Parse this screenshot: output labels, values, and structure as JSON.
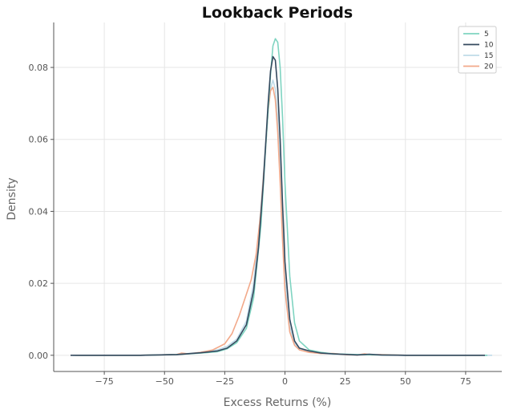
{
  "chart_data": {
    "type": "line",
    "title": "Lookback Periods",
    "xlabel": "Excess Returns (%)",
    "ylabel": "Density",
    "xlim": [
      -96,
      90
    ],
    "ylim": [
      -0.0045,
      0.0925
    ],
    "xticks": [
      -75,
      -50,
      -25,
      0,
      25,
      50,
      75
    ],
    "xtick_labels": [
      "−75",
      "−50",
      "−25",
      "0",
      "25",
      "50",
      "75"
    ],
    "yticks": [
      0.0,
      0.02,
      0.04,
      0.06,
      0.08
    ],
    "ytick_labels": [
      "0.00",
      "0.02",
      "0.04",
      "0.06",
      "0.08"
    ],
    "grid": true,
    "legend_position": "top-right",
    "series": [
      {
        "name": "5",
        "color": "#7fd4c1",
        "x": [
          -88,
          -60,
          -45,
          -35,
          -28,
          -24,
          -20,
          -16,
          -13,
          -10,
          -8,
          -6,
          -5,
          -4,
          -3,
          -2,
          -1,
          0,
          2,
          4,
          6,
          10,
          15,
          20,
          30,
          40,
          50,
          60,
          70,
          80,
          84
        ],
        "y": [
          0.0,
          0.0,
          0.0002,
          0.0006,
          0.001,
          0.0018,
          0.0035,
          0.0075,
          0.016,
          0.036,
          0.058,
          0.078,
          0.086,
          0.088,
          0.087,
          0.08,
          0.066,
          0.048,
          0.022,
          0.009,
          0.004,
          0.0015,
          0.0008,
          0.0004,
          0.0002,
          0.0001,
          0.0,
          0.0,
          0.0,
          0.0,
          0.0
        ]
      },
      {
        "name": "10",
        "color": "#34495e",
        "x": [
          -89,
          -60,
          -45,
          -35,
          -28,
          -24,
          -20,
          -16,
          -13,
          -11,
          -9,
          -7,
          -6,
          -5,
          -4,
          -3,
          -2,
          -1,
          0,
          2,
          4,
          6,
          10,
          15,
          20,
          30,
          35,
          40,
          50,
          60,
          70,
          80,
          83
        ],
        "y": [
          0.0,
          0.0,
          0.0002,
          0.0007,
          0.0012,
          0.002,
          0.004,
          0.0085,
          0.018,
          0.03,
          0.048,
          0.07,
          0.079,
          0.083,
          0.082,
          0.074,
          0.06,
          0.042,
          0.026,
          0.01,
          0.004,
          0.002,
          0.0012,
          0.0006,
          0.0004,
          0.0001,
          0.0003,
          0.0001,
          0.0,
          0.0,
          0.0,
          0.0,
          0.0
        ]
      },
      {
        "name": "15",
        "color": "#bfdbe8",
        "x": [
          -86,
          -60,
          -45,
          -35,
          -28,
          -24,
          -20,
          -16,
          -13,
          -11,
          -9,
          -7,
          -6,
          -5,
          -4,
          -3,
          -2,
          -1,
          0,
          2,
          4,
          6,
          10,
          15,
          20,
          30,
          40,
          50,
          60,
          70,
          80,
          86
        ],
        "y": [
          0.0,
          0.0,
          0.0002,
          0.0008,
          0.0015,
          0.0025,
          0.0045,
          0.0095,
          0.02,
          0.033,
          0.05,
          0.068,
          0.074,
          0.0765,
          0.074,
          0.066,
          0.052,
          0.036,
          0.022,
          0.008,
          0.0035,
          0.0018,
          0.001,
          0.0005,
          0.0003,
          0.0002,
          0.0001,
          0.0,
          0.0,
          0.0,
          0.0,
          0.0
        ]
      },
      {
        "name": "20",
        "color": "#f2a98a",
        "x": [
          -87,
          -60,
          -45,
          -43,
          -40,
          -35,
          -30,
          -27,
          -25,
          -22,
          -19,
          -16,
          -14,
          -12,
          -10,
          -8,
          -7,
          -6,
          -5,
          -4,
          -3,
          -2,
          -1,
          0,
          2,
          4,
          6,
          10,
          15,
          20,
          25,
          30,
          33,
          36,
          40,
          50,
          60,
          70,
          80,
          81
        ],
        "y": [
          0.0,
          0.0,
          0.0002,
          0.0006,
          0.0004,
          0.0008,
          0.0015,
          0.0025,
          0.0032,
          0.006,
          0.011,
          0.017,
          0.021,
          0.028,
          0.04,
          0.058,
          0.068,
          0.0735,
          0.0745,
          0.071,
          0.062,
          0.048,
          0.032,
          0.018,
          0.0065,
          0.0028,
          0.0015,
          0.0008,
          0.0005,
          0.0005,
          0.0002,
          0.0001,
          0.0004,
          0.0001,
          0.0002,
          0.0,
          0.0,
          0.0,
          0.0,
          0.0
        ]
      }
    ]
  }
}
